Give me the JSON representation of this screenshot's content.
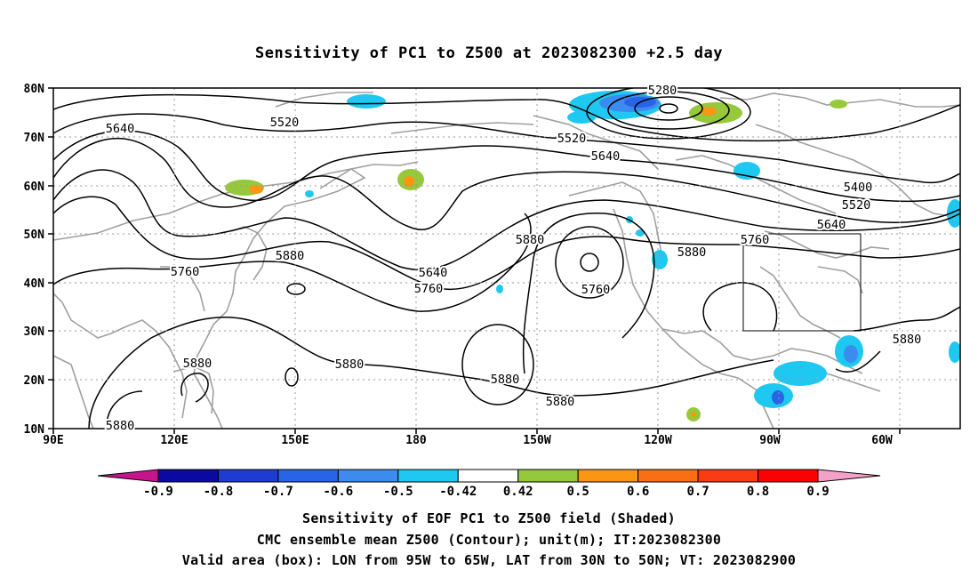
{
  "title": "Sensitivity of PC1 to Z500 at 2023082300 +2.5 day",
  "axes": {
    "lat_labels": [
      "80N",
      "70N",
      "60N",
      "50N",
      "40N",
      "30N",
      "20N",
      "10N"
    ],
    "lon_labels": [
      "90E",
      "120E",
      "150E",
      "180",
      "150W",
      "120W",
      "90W",
      "60W"
    ]
  },
  "contour_labels": [
    "5280",
    "5520",
    "5640",
    "5520",
    "5640",
    "5400",
    "5520",
    "5640",
    "5760",
    "5880",
    "5880",
    "5760",
    "5880",
    "5640",
    "5760",
    "5760",
    "5880",
    "5880",
    "5880",
    "5880",
    "5880",
    "5880"
  ],
  "valid_box": {
    "lon_from": "95W",
    "lon_to": "65W",
    "lat_from": "30N",
    "lat_to": "50N"
  },
  "colorbar": {
    "labels": [
      "-0.9",
      "-0.8",
      "-0.7",
      "-0.6",
      "-0.5",
      "-0.42",
      "0.42",
      "0.5",
      "0.6",
      "0.7",
      "0.8",
      "0.9"
    ],
    "colors": [
      "#0a0aa0",
      "#1e3cd2",
      "#2864e6",
      "#3c8cf0",
      "#1ec8f0",
      "#ffffff",
      "#96c83c",
      "#fa9614",
      "#fa6e14",
      "#fa3c14",
      "#fa0000"
    ],
    "low_end_color": "#c8148c",
    "high_end_color": "#f5a0c8"
  },
  "footer": {
    "line1": "Sensitivity of EOF PC1 to Z500 field (Shaded)",
    "line2": "CMC ensemble mean Z500 (Contour); unit(m); IT:2023082300",
    "line3": "Valid area (box): LON from 95W to 65W, LAT from 30N to 50N; VT: 2023082900"
  }
}
